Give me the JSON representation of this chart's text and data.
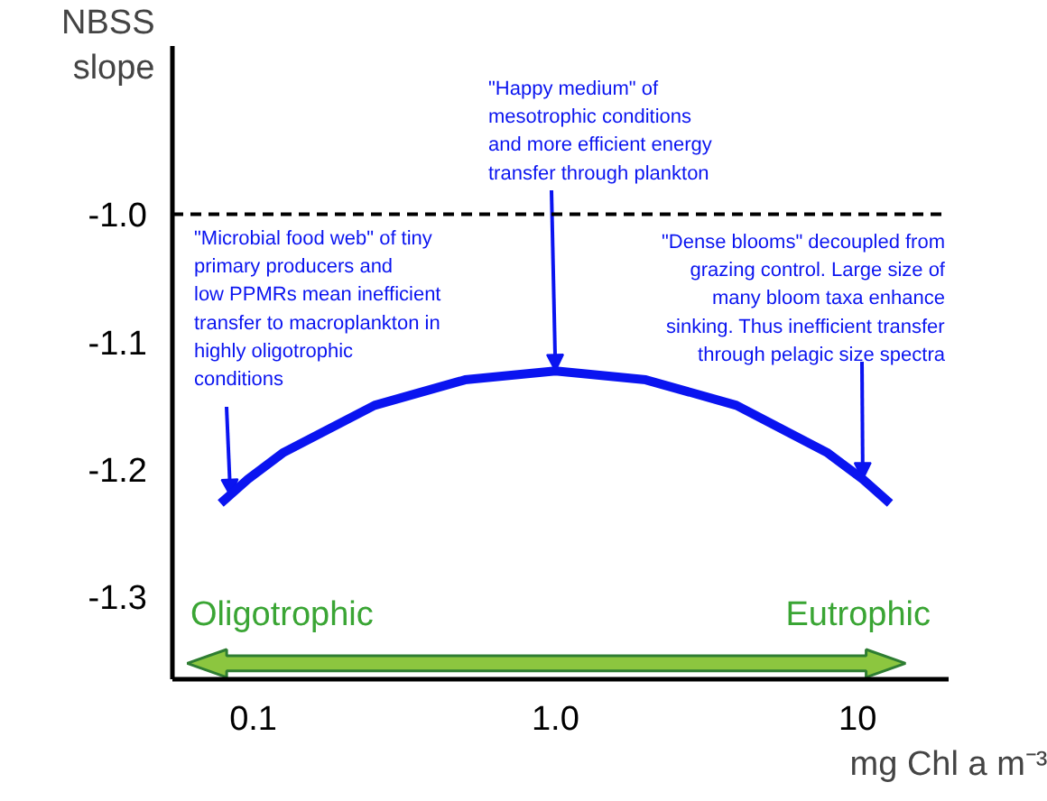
{
  "chart_data": {
    "type": "line",
    "xlabel": "mg Chl a m⁻³",
    "ylabel": "NBSS slope",
    "x": [
      0.078,
      0.096,
      0.126,
      0.252,
      0.502,
      1,
      1.99,
      3.97,
      7.91,
      10.4,
      12.8
    ],
    "series": [
      {
        "color": "#0a14f0",
        "values": [
          -1.227,
          -1.208,
          -1.187,
          -1.15,
          -1.13,
          -1.123,
          -1.13,
          -1.15,
          -1.187,
          -1.208,
          -1.227
        ]
      }
    ],
    "log": "x",
    "xlim": [
      0.054,
      20
    ],
    "ylim": [
      -1.365,
      -0.868
    ],
    "xticks": [
      0.1,
      {
        "value": 1,
        "label": "1.0"
      },
      10
    ],
    "yticks": [
      {
        "value": -1.0,
        "label": "-1.0"
      },
      {
        "value": -1.1,
        "label": "-1.1"
      },
      {
        "value": -1.2,
        "label": "-1.2"
      },
      {
        "value": -1.3,
        "label": "-1.3"
      }
    ],
    "ref_lines": [
      {
        "axis": "y",
        "value": -1.0,
        "color": "#000000",
        "line_style": "dashed"
      }
    ],
    "marker": "none",
    "line_style": "solid",
    "grid": false,
    "annotations": [
      {
        "text": "\"Microbial food web\" of tiny\nprimary producers and\nlow PPMRs mean inefficient\ntransfer  to macroplankton in\nhighly oligotrophic\nconditions",
        "x": 0.084,
        "y": -1.221
      },
      {
        "text": "\"Happy medium\" of\nmesotrophic conditions\nand more efficient energy\ntransfer through plankton",
        "x": 1.0,
        "y": -1.123
      },
      {
        "text": "\"Dense blooms\" decoupled from\ngrazing control. Large size of\nmany bloom taxa enhance\nsinking. Thus inefficient transfer\nthrough pelagic size spectra",
        "x": 10.4,
        "y": -1.208
      },
      "Oligotrophic",
      "Eutrophic"
    ]
  }
}
